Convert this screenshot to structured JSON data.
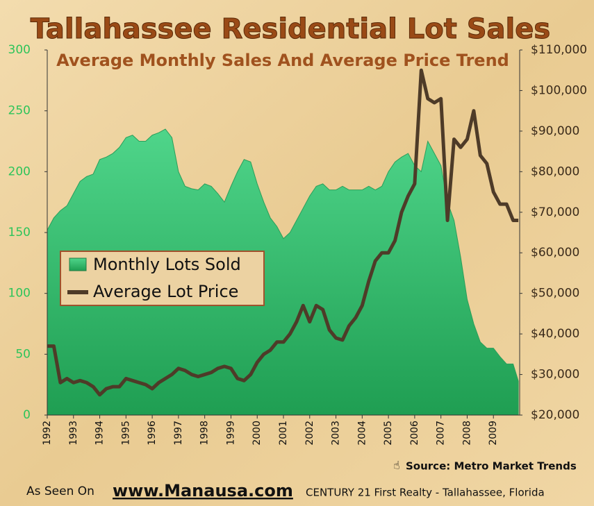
{
  "chart_data": {
    "type": "area",
    "title": "Tallahassee Residential Lot Sales",
    "subtitle": "Average Monthly Sales And Average Price Trend",
    "annotations": [
      "Source: Metro Market Trends",
      "As Seen On",
      "www.Manausa.com",
      "CENTURY 21 First Realty - Tallahassee,  Florida"
    ],
    "x": [
      1992,
      1992.25,
      1992.5,
      1992.75,
      1993,
      1993.25,
      1993.5,
      1993.75,
      1994,
      1994.25,
      1994.5,
      1994.75,
      1995,
      1995.25,
      1995.5,
      1995.75,
      1996,
      1996.25,
      1996.5,
      1996.75,
      1997,
      1997.25,
      1997.5,
      1997.75,
      1998,
      1998.25,
      1998.5,
      1998.75,
      1999,
      1999.25,
      1999.5,
      1999.75,
      2000,
      2000.25,
      2000.5,
      2000.75,
      2001,
      2001.25,
      2001.5,
      2001.75,
      2002,
      2002.25,
      2002.5,
      2002.75,
      2003,
      2003.25,
      2003.5,
      2003.75,
      2004,
      2004.25,
      2004.5,
      2004.75,
      2005,
      2005.25,
      2005.5,
      2005.75,
      2006,
      2006.25,
      2006.5,
      2006.75,
      2007,
      2007.25,
      2007.5,
      2007.75,
      2008,
      2008.25,
      2008.5,
      2008.75,
      2009,
      2009.25,
      2009.5,
      2009.75,
      2009.95
    ],
    "series": [
      {
        "name": "Monthly Lots Sold",
        "type": "area",
        "axis": "y",
        "color": "#2db865",
        "values": [
          152,
          162,
          168,
          172,
          182,
          192,
          196,
          198,
          210,
          212,
          215,
          220,
          228,
          230,
          225,
          225,
          230,
          232,
          235,
          228,
          200,
          188,
          186,
          185,
          190,
          188,
          182,
          175,
          188,
          200,
          210,
          208,
          190,
          175,
          162,
          155,
          145,
          150,
          160,
          170,
          180,
          188,
          190,
          185,
          185,
          188,
          185,
          185,
          185,
          188,
          185,
          188,
          200,
          208,
          212,
          215,
          205,
          200,
          225,
          215,
          205,
          175,
          160,
          130,
          95,
          75,
          60,
          55,
          55,
          48,
          42,
          42,
          28
        ]
      },
      {
        "name": "Average Lot Price",
        "type": "line",
        "axis": "y2",
        "color": "#4e3b28",
        "values": [
          37000,
          37000,
          28000,
          29000,
          28000,
          28500,
          28000,
          27000,
          25000,
          26500,
          27000,
          27000,
          29000,
          28500,
          28000,
          27500,
          26500,
          28000,
          29000,
          30000,
          31500,
          31000,
          30000,
          29500,
          30000,
          30500,
          31500,
          32000,
          31500,
          29000,
          28500,
          30000,
          33000,
          35000,
          36000,
          38000,
          38000,
          40000,
          43000,
          47000,
          43000,
          47000,
          46000,
          41000,
          39000,
          38500,
          42000,
          44000,
          47000,
          53000,
          58000,
          60000,
          60000,
          63000,
          70000,
          74000,
          77000,
          105000,
          98000,
          97000,
          98000,
          68000,
          88000,
          86000,
          88000,
          95000,
          84000,
          82000,
          75000,
          72000,
          72000,
          68000,
          68000
        ]
      }
    ],
    "xlim": [
      1992,
      2010
    ],
    "xticks": [
      1992,
      1993,
      1994,
      1995,
      1996,
      1997,
      1998,
      1999,
      2000,
      2001,
      2002,
      2003,
      2004,
      2005,
      2006,
      2007,
      2008,
      2009
    ],
    "ylim": [
      0,
      300
    ],
    "yticks": [
      0,
      50,
      100,
      150,
      200,
      250,
      300
    ],
    "y2lim": [
      20000,
      110000
    ],
    "y2ticks": [
      {
        "value": 20000,
        "label": "$20,000"
      },
      {
        "value": 30000,
        "label": "$30,000"
      },
      {
        "value": 40000,
        "label": "$40,000"
      },
      {
        "value": 50000,
        "label": "$50,000"
      },
      {
        "value": 60000,
        "label": "$60,000"
      },
      {
        "value": 70000,
        "label": "$70,000"
      },
      {
        "value": 80000,
        "label": "$80,000"
      },
      {
        "value": 90000,
        "label": "$90,000"
      },
      {
        "value": 100000,
        "label": "$100,000"
      },
      {
        "value": 110000,
        "label": "$110,000"
      }
    ],
    "legend": "left"
  }
}
